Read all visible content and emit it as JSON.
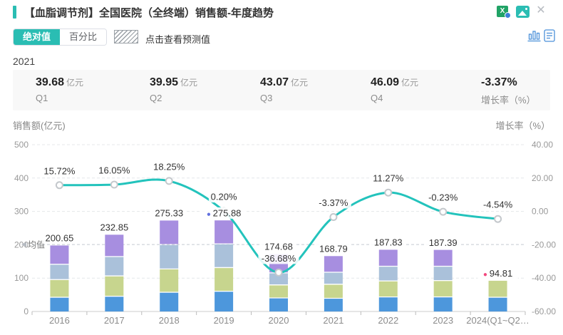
{
  "header": {
    "title": "【血脂调节剂】全国医院（全终端）销售额-年度趋势"
  },
  "icons": {
    "export_excel_glyph": "X",
    "close_glyph": "✕"
  },
  "toolbar": {
    "absolute_label": "绝对值",
    "percent_label": "百分比",
    "forecast_hint": "点击查看预测值"
  },
  "stats": {
    "year": "2021",
    "items": [
      {
        "value": "39.68",
        "unit": "亿元",
        "label": "Q1"
      },
      {
        "value": "39.95",
        "unit": "亿元",
        "label": "Q2"
      },
      {
        "value": "43.07",
        "unit": "亿元",
        "label": "Q3"
      },
      {
        "value": "46.09",
        "unit": "亿元",
        "label": "Q4"
      },
      {
        "value": "-3.37%",
        "unit": "",
        "label": "增长率（%）"
      }
    ]
  },
  "chart_data": {
    "type": "bar",
    "subtype": "stacked-bar-with-line",
    "categories": [
      "2016",
      "2017",
      "2018",
      "2019",
      "2020",
      "2021",
      "2022",
      "2023",
      "2024(Q1~Q2…"
    ],
    "left_axis": {
      "title": "销售额(亿元)",
      "ticks": [
        "500",
        "400",
        "300",
        "200",
        "100",
        "0"
      ],
      "min": 0,
      "max": 500,
      "grid": "dashed"
    },
    "right_axis": {
      "title": "增长率（%）",
      "ticks": [
        "40.00",
        "20.00",
        "0.00",
        "-20.00",
        "-40.00",
        "-60.00"
      ],
      "min": -60,
      "max": 40
    },
    "average_line": {
      "label": "均值",
      "value": 200.9
    },
    "bar_stack": {
      "colors": [
        "#4D97DC",
        "#C7D58E",
        "#AAC1DA",
        "#A78EE0"
      ],
      "totals": [
        200.65,
        232.85,
        275.33,
        275.88,
        174.68,
        168.79,
        187.83,
        187.39,
        94.81
      ],
      "total_labels": [
        "200.65",
        "232.85",
        "275.33",
        "275.88",
        "174.68",
        "168.79",
        "187.83",
        "187.39",
        "94.81"
      ],
      "segments": [
        [
          44,
          53,
          46,
          57.65
        ],
        [
          47,
          61,
          58,
          66.85
        ],
        [
          59,
          70,
          73,
          73.33
        ],
        [
          62,
          71,
          71,
          71.88
        ],
        [
          42,
          39,
          36,
          57.68
        ],
        [
          41,
          42,
          36,
          49.79
        ],
        [
          45,
          48,
          44,
          50.83
        ],
        [
          45,
          49,
          43,
          50.39
        ],
        [
          44,
          50.81
        ]
      ],
      "markers": [
        null,
        null,
        null,
        {
          "type": "max",
          "color": "#6170DF"
        },
        null,
        null,
        null,
        null,
        {
          "type": "min",
          "color": "#F2487E"
        }
      ]
    },
    "line": {
      "name": "增长率",
      "color": "#23C3BC",
      "values": [
        15.72,
        16.05,
        18.25,
        0.2,
        -36.68,
        -3.37,
        11.27,
        -0.23,
        -4.54
      ],
      "labels": [
        "15.72%",
        "16.05%",
        "18.25%",
        "0.20%",
        "-36.68%",
        "-3.37%",
        "11.27%",
        "-0.23%",
        "-4.54%"
      ]
    }
  }
}
